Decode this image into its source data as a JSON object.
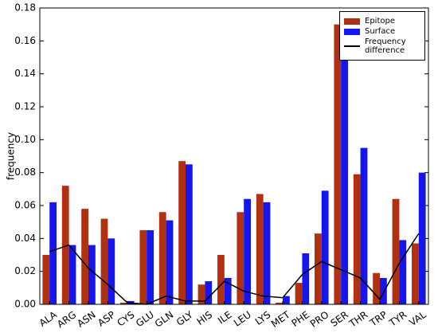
{
  "chart_data": {
    "type": "bar",
    "ylabel": "frequency",
    "categories": [
      "ALA",
      "ARG",
      "ASN",
      "ASP",
      "CYS",
      "GLU",
      "GLN",
      "GLY",
      "HIS",
      "ILE",
      "LEU",
      "LYS",
      "MET",
      "PHE",
      "PRO",
      "SER",
      "THR",
      "TRP",
      "TYR",
      "VAL"
    ],
    "series": [
      {
        "name": "Epitope",
        "color": "#b0300f",
        "values": [
          0.03,
          0.072,
          0.058,
          0.052,
          0.001,
          0.045,
          0.056,
          0.087,
          0.012,
          0.03,
          0.056,
          0.067,
          0.001,
          0.013,
          0.043,
          0.17,
          0.079,
          0.019,
          0.064,
          0.037
        ]
      },
      {
        "name": "Surface",
        "color": "#1515ee",
        "values": [
          0.062,
          0.036,
          0.036,
          0.04,
          0.002,
          0.045,
          0.051,
          0.085,
          0.014,
          0.016,
          0.064,
          0.062,
          0.005,
          0.031,
          0.069,
          0.149,
          0.095,
          0.016,
          0.039,
          0.08
        ]
      },
      {
        "name": "Frequency difference",
        "color": "#000000",
        "type": "line",
        "values": [
          0.032,
          0.036,
          0.022,
          0.012,
          0.001,
          0.0,
          0.005,
          0.002,
          0.002,
          0.014,
          0.008,
          0.005,
          0.004,
          0.018,
          0.026,
          0.021,
          0.016,
          0.003,
          0.025,
          0.043
        ]
      }
    ],
    "ylim": [
      0,
      0.18
    ],
    "yticks": [
      {
        "value": 0,
        "label": "0.00"
      },
      {
        "value": 0.02,
        "label": "0.02"
      },
      {
        "value": 0.04,
        "label": "0.04"
      },
      {
        "value": 0.06,
        "label": "0.06"
      },
      {
        "value": 0.08,
        "label": "0.08"
      },
      {
        "value": 0.1,
        "label": "0.10"
      },
      {
        "value": 0.12,
        "label": "0.12"
      },
      {
        "value": 0.14,
        "label": "0.14"
      },
      {
        "value": 0.16,
        "label": "0.16"
      },
      {
        "value": 0.18,
        "label": "0.18"
      }
    ],
    "grid": false,
    "legend": "upper right"
  }
}
